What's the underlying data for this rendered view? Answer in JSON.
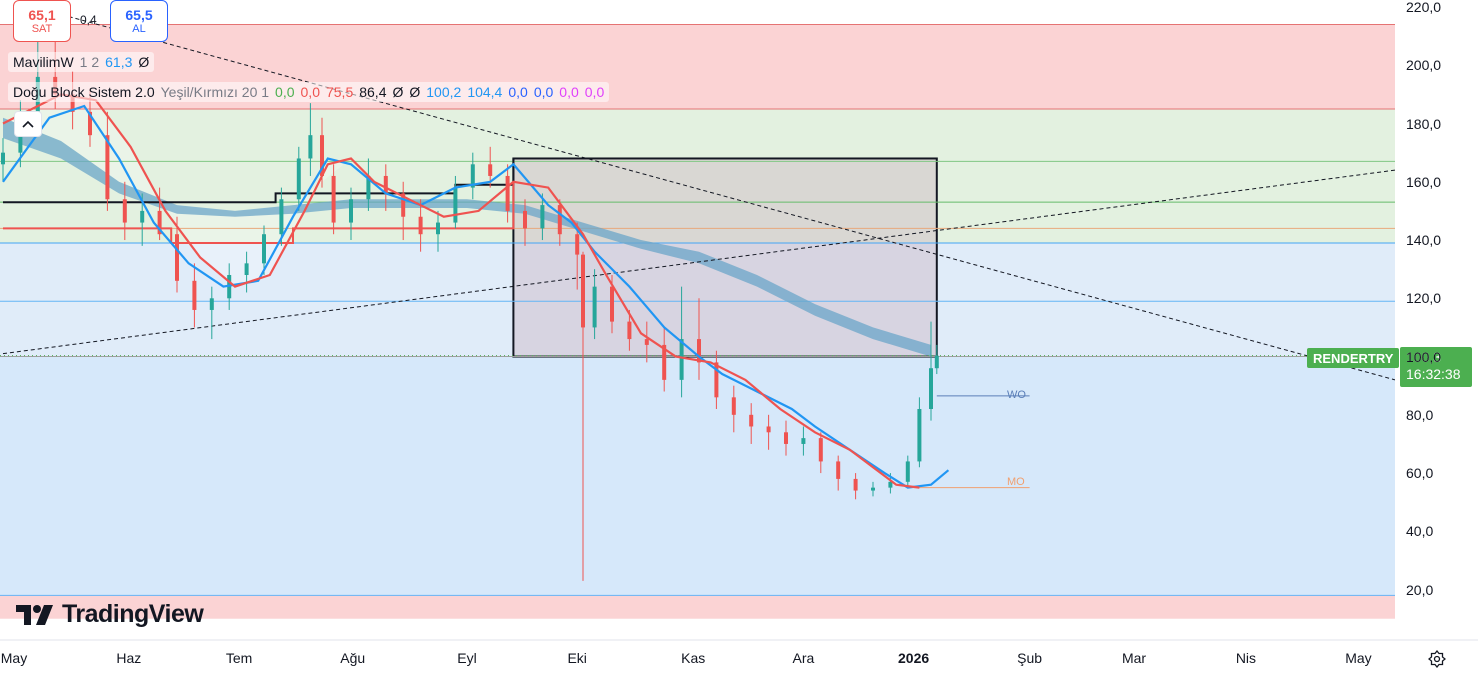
{
  "trade": {
    "sell_price": "65,1",
    "sell_label": "SAT",
    "spread": "0,4",
    "buy_price": "65,5",
    "buy_label": "AL"
  },
  "indicators": [
    {
      "name": "MavilimW",
      "params": "1 2",
      "values": [
        {
          "text": "61,3",
          "color": "#2196f3"
        },
        {
          "text": "Ø",
          "color": "#131722"
        }
      ]
    },
    {
      "name": "Doğu Block Sistem 2.0",
      "params": "Yeşil/Kırmızı 20 1",
      "values": [
        {
          "text": "0,0",
          "color": "#4caf50"
        },
        {
          "text": "0,0",
          "color": "#ef5350"
        },
        {
          "text": "75,5",
          "color": "#ef5350"
        },
        {
          "text": "86,4",
          "color": "#131722"
        },
        {
          "text": "Ø",
          "color": "#131722"
        },
        {
          "text": "Ø",
          "color": "#131722"
        },
        {
          "text": "100,2",
          "color": "#2196f3"
        },
        {
          "text": "104,4",
          "color": "#2196f3"
        },
        {
          "text": "0,0",
          "color": "#2962ff"
        },
        {
          "text": "0,0",
          "color": "#2962ff"
        },
        {
          "text": "0,0",
          "color": "#e040fb"
        },
        {
          "text": "0,0",
          "color": "#e040fb"
        }
      ]
    }
  ],
  "logo_text": "TradingView",
  "symbol": "RENDERTRY",
  "last_price": "100,3",
  "countdown": "16:32:38",
  "annotations": {
    "wo": "WO",
    "mo": "MO"
  },
  "icons": {
    "collapse": "chevron-up-icon",
    "settings": "gear-icon",
    "logo": "tradingview-logo-icon"
  },
  "chart_data": {
    "type": "candlestick",
    "x_labels": [
      "May",
      "Haz",
      "Tem",
      "Ağu",
      "Eyl",
      "Eki",
      "Kas",
      "Ara",
      "2026",
      "Şub",
      "Mar",
      "Nis",
      "May"
    ],
    "y_ticks": [
      "220,0",
      "200,0",
      "180,0",
      "160,0",
      "140,0",
      "120,0",
      "100,0",
      "80,0",
      "60,0",
      "40,0",
      "20,0"
    ],
    "ylim": [
      10,
      220
    ],
    "colors": {
      "up": "#26a69a",
      "down": "#ef5350",
      "mavilimw": "#2196f3",
      "signal": "#ef5350",
      "band": "#6ba6c8",
      "price_tag": "#4caf50"
    },
    "zones": [
      {
        "from": 185,
        "to": 214,
        "color": "#fbd3d4"
      },
      {
        "from": 139,
        "to": 185,
        "color": "#e3f1e0"
      },
      {
        "from": 100,
        "to": 139,
        "color": "#e0ecf9"
      },
      {
        "from": 18,
        "to": 100,
        "color": "#d6e8fa"
      },
      {
        "from": 10,
        "to": 18,
        "color": "#fbd3d4"
      }
    ],
    "horizontal_lines": [
      {
        "y": 214,
        "color": "#e57373"
      },
      {
        "y": 185,
        "color": "#e57373"
      },
      {
        "y": 167,
        "color": "#81c784"
      },
      {
        "y": 153,
        "color": "#66bb6a"
      },
      {
        "y": 144,
        "color": "#e8a87c"
      },
      {
        "y": 139,
        "color": "#42a5f5"
      },
      {
        "y": 119,
        "color": "#64b5f6"
      },
      {
        "y": 100,
        "color": "#9e9e9e"
      },
      {
        "y": 18,
        "color": "#64b5f6"
      }
    ],
    "candles": [
      {
        "t": 0,
        "o": 166,
        "h": 175,
        "l": 160,
        "c": 170
      },
      {
        "t": 3,
        "o": 170,
        "h": 188,
        "l": 165,
        "c": 182
      },
      {
        "t": 6,
        "o": 182,
        "h": 210,
        "l": 178,
        "c": 196
      },
      {
        "t": 9,
        "o": 196,
        "h": 214,
        "l": 185,
        "c": 190
      },
      {
        "t": 12,
        "o": 190,
        "h": 198,
        "l": 178,
        "c": 184
      },
      {
        "t": 15,
        "o": 184,
        "h": 192,
        "l": 172,
        "c": 176
      },
      {
        "t": 18,
        "o": 176,
        "h": 184,
        "l": 150,
        "c": 154
      },
      {
        "t": 21,
        "o": 154,
        "h": 160,
        "l": 140,
        "c": 146
      },
      {
        "t": 24,
        "o": 146,
        "h": 156,
        "l": 138,
        "c": 150
      },
      {
        "t": 27,
        "o": 150,
        "h": 158,
        "l": 140,
        "c": 142
      },
      {
        "t": 30,
        "o": 142,
        "h": 148,
        "l": 122,
        "c": 126
      },
      {
        "t": 33,
        "o": 126,
        "h": 132,
        "l": 110,
        "c": 116
      },
      {
        "t": 36,
        "o": 116,
        "h": 124,
        "l": 106,
        "c": 120
      },
      {
        "t": 39,
        "o": 120,
        "h": 132,
        "l": 116,
        "c": 128
      },
      {
        "t": 42,
        "o": 128,
        "h": 136,
        "l": 122,
        "c": 132
      },
      {
        "t": 45,
        "o": 132,
        "h": 145,
        "l": 128,
        "c": 142
      },
      {
        "t": 48,
        "o": 142,
        "h": 158,
        "l": 138,
        "c": 154
      },
      {
        "t": 51,
        "o": 154,
        "h": 172,
        "l": 150,
        "c": 168
      },
      {
        "t": 53,
        "o": 168,
        "h": 187,
        "l": 162,
        "c": 176
      },
      {
        "t": 55,
        "o": 176,
        "h": 182,
        "l": 158,
        "c": 162
      },
      {
        "t": 57,
        "o": 162,
        "h": 166,
        "l": 142,
        "c": 146
      },
      {
        "t": 60,
        "o": 146,
        "h": 158,
        "l": 140,
        "c": 154
      },
      {
        "t": 63,
        "o": 154,
        "h": 168,
        "l": 150,
        "c": 162
      },
      {
        "t": 66,
        "o": 162,
        "h": 166,
        "l": 150,
        "c": 156
      },
      {
        "t": 69,
        "o": 156,
        "h": 160,
        "l": 140,
        "c": 148
      },
      {
        "t": 72,
        "o": 148,
        "h": 154,
        "l": 136,
        "c": 142
      },
      {
        "t": 75,
        "o": 142,
        "h": 150,
        "l": 136,
        "c": 146
      },
      {
        "t": 78,
        "o": 146,
        "h": 162,
        "l": 144,
        "c": 158
      },
      {
        "t": 81,
        "o": 158,
        "h": 170,
        "l": 154,
        "c": 166
      },
      {
        "t": 84,
        "o": 166,
        "h": 172,
        "l": 158,
        "c": 162
      },
      {
        "t": 87,
        "o": 162,
        "h": 166,
        "l": 146,
        "c": 150
      },
      {
        "t": 90,
        "o": 150,
        "h": 154,
        "l": 138,
        "c": 144
      },
      {
        "t": 93,
        "o": 144,
        "h": 156,
        "l": 140,
        "c": 152
      },
      {
        "t": 96,
        "o": 152,
        "h": 154,
        "l": 138,
        "c": 142
      },
      {
        "t": 99,
        "o": 142,
        "h": 146,
        "l": 123,
        "c": 135
      },
      {
        "t": 100,
        "o": 135,
        "h": 136,
        "l": 23,
        "c": 110
      },
      {
        "t": 102,
        "o": 110,
        "h": 130,
        "l": 106,
        "c": 124
      },
      {
        "t": 105,
        "o": 124,
        "h": 128,
        "l": 108,
        "c": 112
      },
      {
        "t": 108,
        "o": 112,
        "h": 116,
        "l": 102,
        "c": 106
      },
      {
        "t": 111,
        "o": 106,
        "h": 112,
        "l": 98,
        "c": 104
      },
      {
        "t": 114,
        "o": 104,
        "h": 110,
        "l": 88,
        "c": 92
      },
      {
        "t": 117,
        "o": 92,
        "h": 124,
        "l": 86,
        "c": 106
      },
      {
        "t": 120,
        "o": 106,
        "h": 120,
        "l": 92,
        "c": 98
      },
      {
        "t": 123,
        "o": 98,
        "h": 102,
        "l": 82,
        "c": 86
      },
      {
        "t": 126,
        "o": 86,
        "h": 90,
        "l": 74,
        "c": 80
      },
      {
        "t": 129,
        "o": 80,
        "h": 84,
        "l": 70,
        "c": 76
      },
      {
        "t": 132,
        "o": 76,
        "h": 80,
        "l": 68,
        "c": 74
      },
      {
        "t": 135,
        "o": 74,
        "h": 78,
        "l": 66,
        "c": 70
      },
      {
        "t": 138,
        "o": 70,
        "h": 76,
        "l": 66,
        "c": 72
      },
      {
        "t": 141,
        "o": 72,
        "h": 74,
        "l": 60,
        "c": 64
      },
      {
        "t": 144,
        "o": 64,
        "h": 66,
        "l": 54,
        "c": 58
      },
      {
        "t": 147,
        "o": 58,
        "h": 60,
        "l": 51,
        "c": 54
      },
      {
        "t": 150,
        "o": 54,
        "h": 57,
        "l": 52,
        "c": 55
      },
      {
        "t": 153,
        "o": 55,
        "h": 60,
        "l": 53,
        "c": 57
      },
      {
        "t": 156,
        "o": 57,
        "h": 66,
        "l": 55,
        "c": 64
      },
      {
        "t": 158,
        "o": 64,
        "h": 86,
        "l": 62,
        "c": 82
      },
      {
        "t": 160,
        "o": 82,
        "h": 112,
        "l": 78,
        "c": 96
      },
      {
        "t": 161,
        "o": 96,
        "h": 104,
        "l": 94,
        "c": 100.3
      }
    ],
    "series": [
      {
        "name": "MavilimW",
        "color": "#2196f3",
        "points": [
          [
            0,
            160
          ],
          [
            8,
            182
          ],
          [
            14,
            186
          ],
          [
            20,
            168
          ],
          [
            26,
            146
          ],
          [
            32,
            132
          ],
          [
            38,
            124
          ],
          [
            44,
            126
          ],
          [
            50,
            148
          ],
          [
            56,
            168
          ],
          [
            60,
            166
          ],
          [
            66,
            156
          ],
          [
            72,
            152
          ],
          [
            78,
            158
          ],
          [
            84,
            160
          ],
          [
            88,
            166
          ],
          [
            94,
            152
          ],
          [
            98,
            146
          ],
          [
            102,
            136
          ],
          [
            108,
            124
          ],
          [
            114,
            110
          ],
          [
            120,
            100
          ],
          [
            124,
            94
          ],
          [
            130,
            88
          ],
          [
            136,
            82
          ],
          [
            140,
            76
          ],
          [
            146,
            68
          ],
          [
            152,
            60
          ],
          [
            156,
            55
          ],
          [
            160,
            56
          ],
          [
            163,
            61
          ]
        ]
      },
      {
        "name": "",
        "color": "#ef5350",
        "points": [
          [
            0,
            180
          ],
          [
            10,
            190
          ],
          [
            16,
            188
          ],
          [
            22,
            172
          ],
          [
            28,
            150
          ],
          [
            34,
            134
          ],
          [
            40,
            124
          ],
          [
            46,
            128
          ],
          [
            52,
            150
          ],
          [
            56,
            166
          ],
          [
            60,
            168
          ],
          [
            64,
            160
          ],
          [
            70,
            154
          ],
          [
            76,
            148
          ],
          [
            82,
            150
          ],
          [
            88,
            160
          ],
          [
            94,
            158
          ],
          [
            100,
            142
          ],
          [
            104,
            128
          ],
          [
            110,
            108
          ],
          [
            116,
            100
          ],
          [
            122,
            98
          ],
          [
            128,
            92
          ],
          [
            134,
            82
          ],
          [
            140,
            74
          ],
          [
            146,
            68
          ],
          [
            150,
            62
          ],
          [
            154,
            56
          ],
          [
            158,
            55
          ]
        ]
      }
    ],
    "band": {
      "upper": [
        [
          0,
          182
        ],
        [
          10,
          174
        ],
        [
          20,
          160
        ],
        [
          30,
          152
        ],
        [
          40,
          150
        ],
        [
          50,
          152
        ],
        [
          60,
          154
        ],
        [
          70,
          154
        ],
        [
          80,
          154
        ],
        [
          90,
          152
        ],
        [
          100,
          146
        ],
        [
          110,
          140
        ],
        [
          120,
          136
        ],
        [
          130,
          128
        ],
        [
          140,
          118
        ],
        [
          150,
          110
        ],
        [
          160,
          104
        ]
      ],
      "lower": [
        [
          0,
          175
        ],
        [
          10,
          168
        ],
        [
          20,
          156
        ],
        [
          30,
          149
        ],
        [
          40,
          148
        ],
        [
          50,
          149
        ],
        [
          60,
          151
        ],
        [
          70,
          151
        ],
        [
          80,
          151
        ],
        [
          90,
          149
        ],
        [
          100,
          143
        ],
        [
          110,
          137
        ],
        [
          120,
          132
        ],
        [
          130,
          124
        ],
        [
          140,
          114
        ],
        [
          150,
          106
        ],
        [
          160,
          100
        ]
      ]
    },
    "block": {
      "x0": 88,
      "x1": 161,
      "top": 168,
      "bottom": 100
    },
    "steps": [
      {
        "color": "#131722",
        "points": [
          [
            0,
            153
          ],
          [
            47,
            153
          ],
          [
            47,
            156
          ],
          [
            78,
            156
          ],
          [
            78,
            159
          ],
          [
            88,
            159
          ],
          [
            88,
            168
          ]
        ]
      },
      {
        "color": "#ef5350",
        "points": [
          [
            0,
            144
          ],
          [
            29,
            144
          ],
          [
            29,
            139
          ],
          [
            50,
            139
          ],
          [
            50,
            144
          ],
          [
            88,
            144
          ],
          [
            88,
            160
          ]
        ]
      }
    ],
    "trendlines": [
      {
        "from": [
          9,
          218
        ],
        "to": [
          240,
          92
        ],
        "style": "dashed"
      },
      {
        "from": [
          0,
          101
        ],
        "to": [
          240,
          164
        ],
        "style": "dashed"
      }
    ],
    "levels": [
      {
        "label": "WO",
        "y": 86.5,
        "x0": 161,
        "x1": 177,
        "color": "#5b7fb8"
      },
      {
        "label": "MO",
        "y": 55,
        "x0": 157,
        "x1": 177,
        "color": "#f0a070"
      }
    ]
  }
}
